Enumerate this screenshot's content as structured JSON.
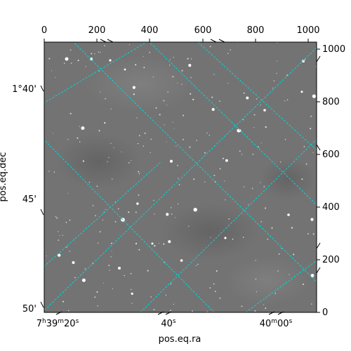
{
  "image": {
    "type": "astronomical sky image with celestial coordinate grid",
    "pixel_range": [
      0,
      1000
    ],
    "grid_color": "#00d8d8",
    "background_color": "#737373"
  },
  "axes": {
    "xlabel": "pos.eq.ra",
    "ylabel": "pos.eq.dec",
    "top_ticks": [
      "0",
      "200",
      "400",
      "600",
      "800",
      "1000"
    ],
    "right_ticks": [
      "0",
      "200",
      "400",
      "600",
      "800",
      "1000"
    ],
    "ra_ticks": [
      {
        "h": "7",
        "m": "39",
        "s": "20",
        "suffix": "s"
      },
      {
        "text": "40s"
      },
      {
        "h": null,
        "m": "40",
        "s": "00",
        "suffix": "s"
      }
    ],
    "dec_ticks": [
      "1°40'",
      "45'",
      "50'"
    ]
  }
}
